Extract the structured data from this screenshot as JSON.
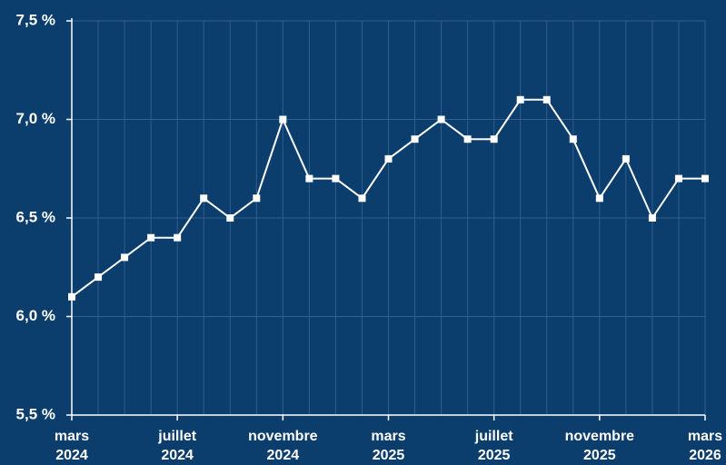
{
  "chart_data": {
    "type": "line",
    "categories": [
      [
        "mars",
        "2024"
      ],
      null,
      null,
      null,
      [
        "juillet",
        "2024"
      ],
      null,
      null,
      null,
      [
        "novembre",
        "2024"
      ],
      null,
      null,
      null,
      [
        "mars",
        "2025"
      ],
      null,
      null,
      null,
      [
        "juillet",
        "2025"
      ],
      null,
      null,
      null,
      [
        "novembre",
        "2025"
      ],
      null,
      null,
      null,
      [
        "mars",
        "2026"
      ]
    ],
    "series": [
      {
        "color": "#ffffff",
        "values": [
          6.1,
          6.2,
          6.3,
          6.4,
          6.4,
          6.6,
          6.5,
          6.6,
          7.0,
          6.7,
          6.7,
          6.6,
          6.8,
          6.9,
          7.0,
          6.9,
          6.9,
          7.1,
          7.1,
          6.9,
          6.6,
          6.8,
          6.5,
          6.7,
          6.7
        ]
      }
    ],
    "ylim": [
      5.5,
      7.5
    ],
    "yticks": [
      {
        "value": 5.5,
        "label": "5,5 %"
      },
      {
        "value": 6.0,
        "label": "6,0 %"
      },
      {
        "value": 6.5,
        "label": "6,5 %"
      },
      {
        "value": 7.0,
        "label": "7,0 %"
      },
      {
        "value": 7.5,
        "label": "7,5 %"
      }
    ],
    "grid": true
  }
}
